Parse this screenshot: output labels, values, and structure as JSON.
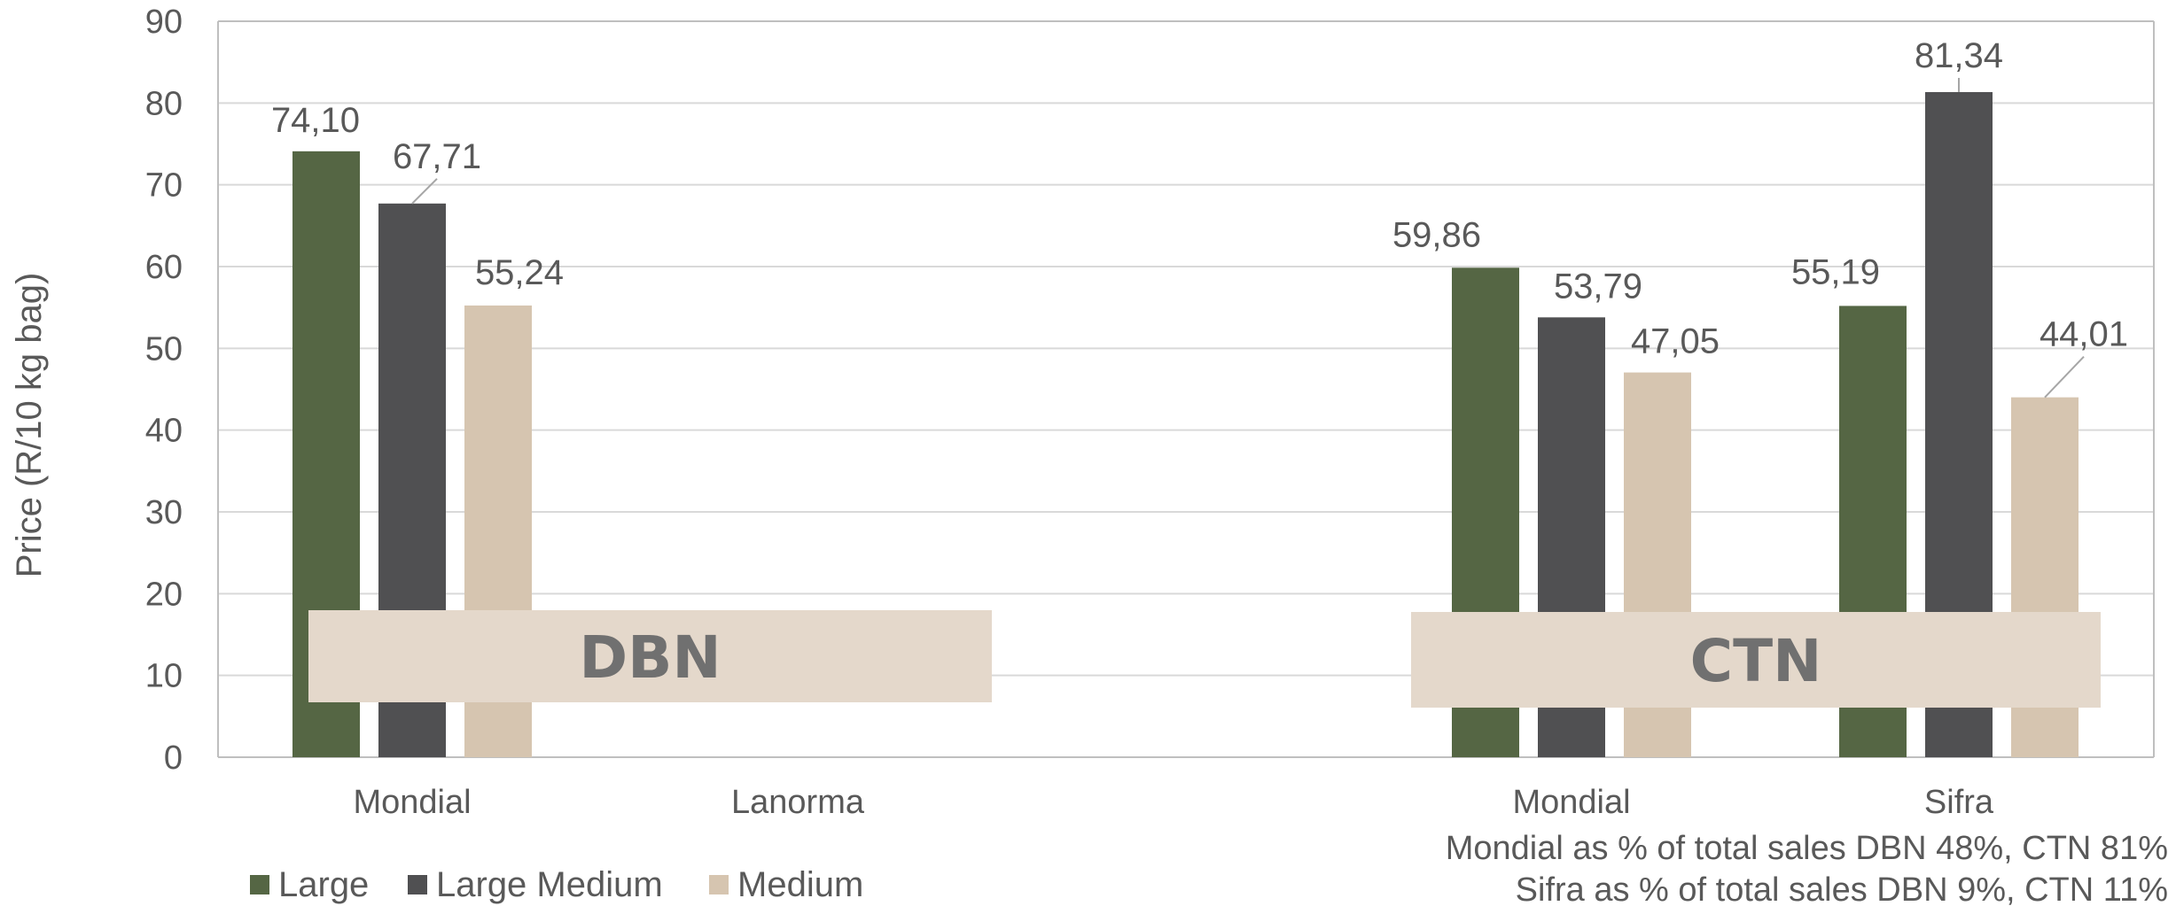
{
  "chart_data": {
    "type": "bar",
    "ylabel": "Price (R/10 kg bag)",
    "xlabel": "",
    "ylim": [
      0,
      90
    ],
    "yticks": [
      0,
      10,
      20,
      30,
      40,
      50,
      60,
      70,
      80,
      90
    ],
    "grid": true,
    "legend_placement": "bottom-left",
    "categories": [
      "Mondial",
      "Lanorma",
      "Mondial",
      "Sifra"
    ],
    "regions": [
      {
        "label": "DBN",
        "categories": [
          0,
          1
        ]
      },
      {
        "label": "CTN",
        "categories": [
          2,
          3
        ]
      }
    ],
    "series": [
      {
        "name": "Large",
        "color": "#556644",
        "values": [
          74.1,
          null,
          59.86,
          55.19
        ],
        "labels": [
          "74,10",
          "",
          "59,86",
          "55,19"
        ]
      },
      {
        "name": "Large Medium",
        "color": "#505052",
        "values": [
          67.71,
          null,
          53.79,
          81.34
        ],
        "labels": [
          "67,71",
          "",
          "53,79",
          "81,34"
        ]
      },
      {
        "name": "Medium",
        "color": "#d6c5b0",
        "values": [
          55.24,
          null,
          47.05,
          44.01
        ],
        "labels": [
          "55,24",
          "",
          "47,05",
          "44,01"
        ]
      }
    ],
    "notes": [
      "Mondial as % of total sales DBN 48%, CTN 81%",
      "Sifra as % of total sales DBN 9%, CTN 11%"
    ],
    "colors": {
      "grid": "#d9d9d9",
      "axis": "#bfbfbf",
      "region_box": "#e4d8cb",
      "text": "#595959"
    }
  }
}
